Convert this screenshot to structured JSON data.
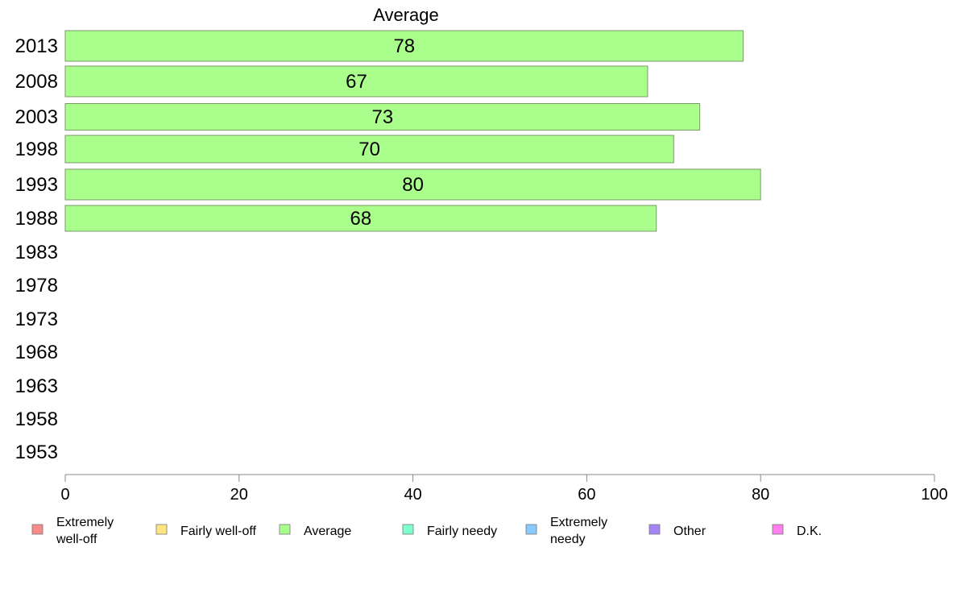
{
  "chart_data": {
    "type": "bar",
    "orientation": "horizontal",
    "title": "Average",
    "categories": [
      "2013",
      "2008",
      "2003",
      "1998",
      "1993",
      "1988",
      "1983",
      "1978",
      "1973",
      "1968",
      "1963",
      "1958",
      "1953"
    ],
    "series": [
      {
        "name": "Average",
        "values": [
          78,
          67,
          73,
          70,
          80,
          68,
          null,
          null,
          null,
          null,
          null,
          null,
          null
        ],
        "color": "#aaff8c"
      }
    ],
    "xlim": [
      0,
      100
    ],
    "xticks": [
      "0",
      "20",
      "40",
      "60",
      "80",
      "100"
    ],
    "grid": false,
    "legend_position": "bottom",
    "legend": [
      {
        "lines": [
          "Extremely",
          "well-off"
        ],
        "color": "#f98a8a"
      },
      {
        "lines": [
          "Fairly well-off"
        ],
        "color": "#ffe680"
      },
      {
        "lines": [
          "Average"
        ],
        "color": "#aaff8c"
      },
      {
        "lines": [
          "Fairly needy"
        ],
        "color": "#7fffcc"
      },
      {
        "lines": [
          "Extremely",
          "needy"
        ],
        "color": "#88ccff"
      },
      {
        "lines": [
          "Other"
        ],
        "color": "#a585f5"
      },
      {
        "lines": [
          "D.K."
        ],
        "color": "#ff80ec"
      }
    ]
  }
}
